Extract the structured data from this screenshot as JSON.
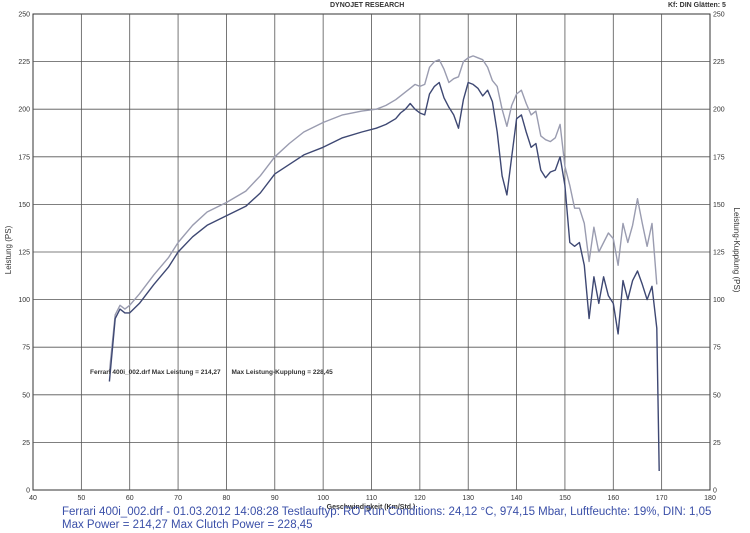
{
  "header": {
    "center": "DYNOJET RESEARCH",
    "right": "Kf: DIN  Glätten: 5"
  },
  "chart_data": {
    "type": "line",
    "title": "",
    "xlabel": "Geschwindigkeit (Km/Std.)",
    "ylabel_left": "Leistung (PS)",
    "ylabel_right": "Leistung-Kupplung (PS)",
    "xlim": [
      40,
      180
    ],
    "ylim": [
      0,
      250
    ],
    "x_ticks": [
      40,
      50,
      60,
      70,
      80,
      90,
      100,
      110,
      120,
      130,
      140,
      150,
      160,
      170,
      180
    ],
    "y_ticks": [
      0,
      25,
      50,
      75,
      100,
      125,
      150,
      175,
      200,
      225,
      250
    ],
    "grid": true,
    "annotation": "Ferrari 400i_002.drf Max Leistung = 214,27      Max Leistung-Kupplung = 228,45",
    "series": [
      {
        "color": "#9a9cb0",
        "points": [
          [
            55.8,
            62
          ],
          [
            57,
            92
          ],
          [
            58,
            97
          ],
          [
            59,
            95
          ],
          [
            60,
            97
          ],
          [
            62,
            103
          ],
          [
            65,
            113
          ],
          [
            68,
            122
          ],
          [
            70,
            130
          ],
          [
            73,
            139
          ],
          [
            76,
            146
          ],
          [
            80,
            151
          ],
          [
            84,
            157
          ],
          [
            87,
            165
          ],
          [
            90,
            175
          ],
          [
            93,
            182
          ],
          [
            96,
            188
          ],
          [
            100,
            193
          ],
          [
            104,
            197
          ],
          [
            108,
            199
          ],
          [
            111,
            200
          ],
          [
            113,
            202
          ],
          [
            115,
            205
          ],
          [
            116,
            207
          ],
          [
            117,
            209
          ],
          [
            118,
            211
          ],
          [
            119,
            213
          ],
          [
            120,
            212
          ],
          [
            121,
            213
          ],
          [
            122,
            222
          ],
          [
            123,
            225
          ],
          [
            124,
            226
          ],
          [
            125,
            221
          ],
          [
            126,
            214
          ],
          [
            127,
            216
          ],
          [
            128,
            217
          ],
          [
            129,
            225
          ],
          [
            130,
            227
          ],
          [
            131,
            228
          ],
          [
            132,
            227
          ],
          [
            133,
            226
          ],
          [
            134,
            222
          ],
          [
            135,
            215
          ],
          [
            136,
            212
          ],
          [
            137,
            200
          ],
          [
            138,
            191
          ],
          [
            139,
            202
          ],
          [
            140,
            208
          ],
          [
            141,
            210
          ],
          [
            142,
            203
          ],
          [
            143,
            197
          ],
          [
            144,
            199
          ],
          [
            145,
            186
          ],
          [
            146,
            184
          ],
          [
            147,
            183
          ],
          [
            148,
            185
          ],
          [
            149,
            192
          ],
          [
            150,
            170
          ],
          [
            151,
            160
          ],
          [
            152,
            148
          ],
          [
            153,
            148
          ],
          [
            154,
            140
          ],
          [
            155,
            120
          ],
          [
            156,
            138
          ],
          [
            157,
            125
          ],
          [
            158,
            130
          ],
          [
            159,
            135
          ],
          [
            160,
            132
          ],
          [
            161,
            118
          ],
          [
            162,
            140
          ],
          [
            163,
            130
          ],
          [
            164,
            139
          ],
          [
            165,
            153
          ],
          [
            166,
            140
          ],
          [
            167,
            128
          ],
          [
            168,
            140
          ],
          [
            169,
            108
          ]
        ]
      },
      {
        "color": "#3e4873",
        "points": [
          [
            55.8,
            57
          ],
          [
            57,
            90
          ],
          [
            58,
            95
          ],
          [
            59,
            93
          ],
          [
            60,
            93
          ],
          [
            62,
            98
          ],
          [
            65,
            108
          ],
          [
            68,
            117
          ],
          [
            70,
            125
          ],
          [
            73,
            133
          ],
          [
            76,
            139
          ],
          [
            80,
            144
          ],
          [
            84,
            149
          ],
          [
            87,
            156
          ],
          [
            90,
            166
          ],
          [
            93,
            171
          ],
          [
            96,
            176
          ],
          [
            100,
            180
          ],
          [
            104,
            185
          ],
          [
            108,
            188
          ],
          [
            111,
            190
          ],
          [
            113,
            192
          ],
          [
            115,
            195
          ],
          [
            116,
            198
          ],
          [
            117,
            200
          ],
          [
            118,
            203
          ],
          [
            119,
            200
          ],
          [
            120,
            198
          ],
          [
            121,
            197
          ],
          [
            122,
            208
          ],
          [
            123,
            212
          ],
          [
            124,
            214
          ],
          [
            125,
            206
          ],
          [
            126,
            201
          ],
          [
            127,
            197
          ],
          [
            128,
            190
          ],
          [
            129,
            205
          ],
          [
            130,
            214
          ],
          [
            131,
            213
          ],
          [
            132,
            211
          ],
          [
            133,
            207
          ],
          [
            134,
            210
          ],
          [
            135,
            204
          ],
          [
            136,
            188
          ],
          [
            137,
            165
          ],
          [
            138,
            155
          ],
          [
            139,
            175
          ],
          [
            140,
            195
          ],
          [
            141,
            197
          ],
          [
            142,
            188
          ],
          [
            143,
            180
          ],
          [
            144,
            182
          ],
          [
            145,
            168
          ],
          [
            146,
            164
          ],
          [
            147,
            167
          ],
          [
            148,
            168
          ],
          [
            149,
            175
          ],
          [
            150,
            160
          ],
          [
            151,
            130
          ],
          [
            152,
            128
          ],
          [
            153,
            130
          ],
          [
            154,
            118
          ],
          [
            155,
            90
          ],
          [
            156,
            112
          ],
          [
            157,
            98
          ],
          [
            158,
            112
          ],
          [
            159,
            102
          ],
          [
            160,
            98
          ],
          [
            161,
            82
          ],
          [
            162,
            110
          ],
          [
            163,
            100
          ],
          [
            164,
            110
          ],
          [
            165,
            115
          ],
          [
            166,
            108
          ],
          [
            167,
            100
          ],
          [
            168,
            107
          ],
          [
            169,
            85
          ],
          [
            169.5,
            10
          ]
        ]
      }
    ]
  },
  "footer": {
    "line1": "Ferrari 400i_002.drf - 01.03.2012 14:08:28  Testlauftyp: RO  Run Conditions: 24,12 °C, 974,15 Mbar,  Luftfeuchte: 19%, DIN: 1,05",
    "line2": "Max Power = 214,27  Max Clutch Power = 228,45"
  }
}
